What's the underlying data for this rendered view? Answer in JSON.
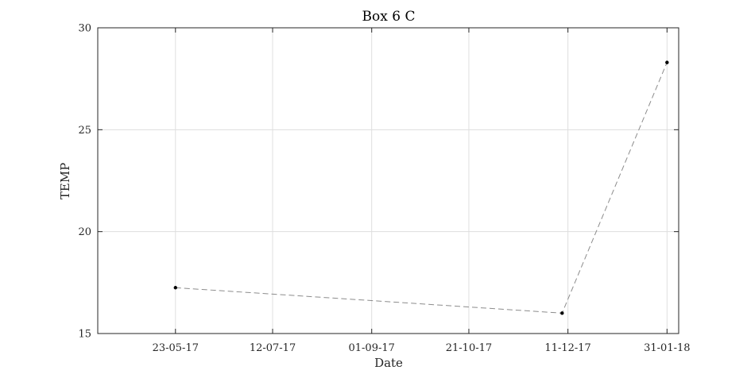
{
  "chart_data": {
    "type": "line",
    "title": "Box 6 C",
    "xlabel": "Date",
    "ylabel": "TEMP",
    "xlim": [
      "2017-04-13",
      "2018-02-06"
    ],
    "ylim": [
      15,
      30
    ],
    "x_tick_dates": [
      "2017-05-23",
      "2017-07-12",
      "2017-09-01",
      "2017-10-21",
      "2017-12-11",
      "2018-01-31"
    ],
    "x_ticks": [
      "23-05-17",
      "12-07-17",
      "01-09-17",
      "21-10-17",
      "11-12-17",
      "31-01-18"
    ],
    "y_ticks": [
      15,
      20,
      25,
      30
    ],
    "grid": true,
    "series": [
      {
        "line_style": "dashed",
        "line_color": "#8c8c8c",
        "marker_color": "#000000",
        "x": [
          "2017-05-23",
          "2017-12-08",
          "2018-01-31"
        ],
        "y": [
          17.25,
          16.0,
          28.3
        ]
      }
    ]
  }
}
